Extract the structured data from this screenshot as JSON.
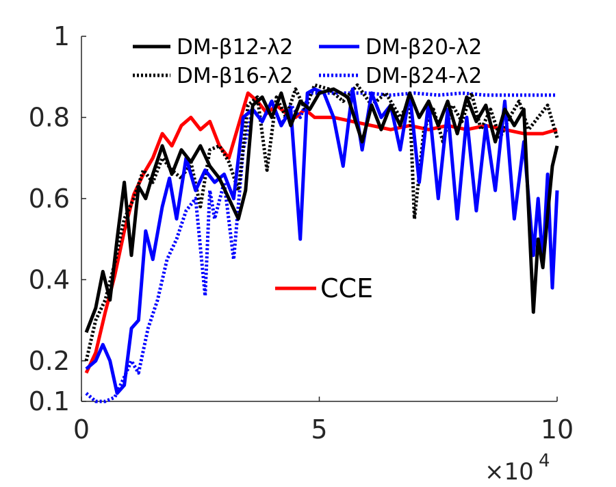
{
  "chart_data": {
    "type": "line",
    "title": "",
    "xlabel": "",
    "ylabel": "",
    "x_multiplier_label": "×10",
    "x_multiplier_exp": "4",
    "xlim": [
      0,
      10
    ],
    "ylim": [
      0.1,
      1
    ],
    "xticks": [
      0,
      5,
      10
    ],
    "xtick_labels": [
      "0",
      "5",
      "10"
    ],
    "yticks": [
      0.1,
      0.2,
      0.4,
      0.6,
      0.8,
      1
    ],
    "ytick_labels": [
      "0.1",
      "0.2",
      "0.4",
      "0.6",
      "0.8",
      "1"
    ],
    "grid": false,
    "legend_position": "top",
    "series": [
      {
        "name": "DM-β12-λ2",
        "color": "#000000",
        "style": "solid",
        "x": [
          0.1,
          0.3,
          0.45,
          0.6,
          0.75,
          0.9,
          1.05,
          1.2,
          1.35,
          1.5,
          1.7,
          1.9,
          2.1,
          2.3,
          2.5,
          2.7,
          2.9,
          3.1,
          3.3,
          3.45,
          3.6,
          3.8,
          4.0,
          4.2,
          4.4,
          4.6,
          4.8,
          5.0,
          5.3,
          5.6,
          5.9,
          6.1,
          6.3,
          6.5,
          6.7,
          6.9,
          7.1,
          7.3,
          7.5,
          7.7,
          7.9,
          8.1,
          8.3,
          8.5,
          8.7,
          8.9,
          9.1,
          9.3,
          9.5,
          9.6,
          9.7,
          9.8,
          9.9,
          10.0
        ],
        "values": [
          0.27,
          0.33,
          0.42,
          0.35,
          0.5,
          0.64,
          0.46,
          0.63,
          0.6,
          0.66,
          0.73,
          0.66,
          0.72,
          0.69,
          0.73,
          0.68,
          0.65,
          0.6,
          0.55,
          0.62,
          0.83,
          0.85,
          0.8,
          0.86,
          0.78,
          0.84,
          0.82,
          0.86,
          0.87,
          0.85,
          0.74,
          0.83,
          0.77,
          0.83,
          0.78,
          0.86,
          0.8,
          0.84,
          0.78,
          0.84,
          0.76,
          0.85,
          0.79,
          0.83,
          0.74,
          0.82,
          0.78,
          0.82,
          0.32,
          0.5,
          0.43,
          0.56,
          0.68,
          0.73
        ]
      },
      {
        "name": "DM-β16-λ2",
        "color": "#000000",
        "style": "dotted",
        "x": [
          0.1,
          0.3,
          0.5,
          0.7,
          0.9,
          1.1,
          1.3,
          1.5,
          1.7,
          1.9,
          2.1,
          2.3,
          2.5,
          2.7,
          2.9,
          3.1,
          3.3,
          3.5,
          3.7,
          3.9,
          4.1,
          4.3,
          4.5,
          4.7,
          4.9,
          5.2,
          5.5,
          5.8,
          6.1,
          6.4,
          6.7,
          6.9,
          7.0,
          7.2,
          7.4,
          7.6,
          7.8,
          8.0,
          8.2,
          8.4,
          8.6,
          8.8,
          9.0,
          9.2,
          9.4,
          9.6,
          9.8,
          10.0
        ],
        "values": [
          0.2,
          0.3,
          0.35,
          0.44,
          0.55,
          0.6,
          0.67,
          0.64,
          0.7,
          0.67,
          0.65,
          0.69,
          0.58,
          0.72,
          0.73,
          0.69,
          0.62,
          0.83,
          0.85,
          0.67,
          0.85,
          0.8,
          0.87,
          0.82,
          0.88,
          0.87,
          0.84,
          0.88,
          0.83,
          0.86,
          0.8,
          0.84,
          0.55,
          0.77,
          0.82,
          0.74,
          0.83,
          0.79,
          0.86,
          0.77,
          0.82,
          0.75,
          0.8,
          0.84,
          0.77,
          0.8,
          0.83,
          0.75
        ]
      },
      {
        "name": "DM-β20-λ2",
        "color": "#0000ff",
        "style": "solid",
        "x": [
          0.1,
          0.3,
          0.45,
          0.6,
          0.75,
          0.9,
          1.05,
          1.2,
          1.35,
          1.5,
          1.7,
          1.85,
          2.0,
          2.2,
          2.4,
          2.6,
          2.8,
          3.0,
          3.2,
          3.4,
          3.6,
          3.8,
          4.0,
          4.2,
          4.4,
          4.6,
          4.75,
          4.9,
          5.1,
          5.3,
          5.5,
          5.7,
          5.9,
          6.1,
          6.3,
          6.5,
          6.7,
          6.9,
          7.1,
          7.3,
          7.5,
          7.7,
          7.9,
          8.1,
          8.3,
          8.5,
          8.7,
          8.9,
          9.1,
          9.3,
          9.5,
          9.6,
          9.7,
          9.8,
          9.9,
          10.0
        ],
        "values": [
          0.18,
          0.2,
          0.24,
          0.2,
          0.12,
          0.14,
          0.28,
          0.3,
          0.52,
          0.45,
          0.58,
          0.65,
          0.55,
          0.7,
          0.62,
          0.67,
          0.64,
          0.66,
          0.6,
          0.8,
          0.82,
          0.79,
          0.84,
          0.78,
          0.82,
          0.5,
          0.86,
          0.87,
          0.86,
          0.8,
          0.68,
          0.87,
          0.72,
          0.86,
          0.8,
          0.83,
          0.72,
          0.86,
          0.64,
          0.84,
          0.6,
          0.82,
          0.55,
          0.8,
          0.57,
          0.78,
          0.62,
          0.84,
          0.55,
          0.74,
          0.46,
          0.6,
          0.44,
          0.66,
          0.38,
          0.62
        ]
      },
      {
        "name": "DM-β24-λ2",
        "color": "#0000ff",
        "style": "dotted",
        "x": [
          0.1,
          0.3,
          0.5,
          0.7,
          0.9,
          1.05,
          1.2,
          1.4,
          1.6,
          1.8,
          2.0,
          2.2,
          2.4,
          2.6,
          2.7,
          2.8,
          3.0,
          3.2,
          3.4,
          3.6,
          3.8,
          4.0,
          4.2,
          4.4,
          4.6,
          4.8,
          5.0,
          5.5,
          6.0,
          6.5,
          7.0,
          7.5,
          8.0,
          8.5,
          9.0,
          9.5,
          10.0
        ],
        "values": [
          0.12,
          0.1,
          0.1,
          0.11,
          0.16,
          0.2,
          0.17,
          0.28,
          0.35,
          0.45,
          0.5,
          0.57,
          0.6,
          0.36,
          0.62,
          0.55,
          0.64,
          0.45,
          0.72,
          0.82,
          0.79,
          0.84,
          0.78,
          0.83,
          0.8,
          0.86,
          0.86,
          0.86,
          0.86,
          0.855,
          0.86,
          0.855,
          0.86,
          0.855,
          0.855,
          0.855,
          0.855
        ]
      },
      {
        "name": "CCE",
        "color": "#ff0000",
        "style": "solid",
        "x": [
          0.1,
          0.3,
          0.5,
          0.7,
          0.9,
          1.1,
          1.3,
          1.5,
          1.7,
          1.9,
          2.1,
          2.3,
          2.5,
          2.7,
          2.9,
          3.1,
          3.3,
          3.5,
          3.7,
          3.9,
          4.1,
          4.3,
          4.5,
          4.7,
          4.9,
          5.3,
          5.7,
          6.1,
          6.5,
          6.9,
          7.3,
          7.7,
          8.1,
          8.5,
          8.9,
          9.3,
          9.7,
          10.0
        ],
        "values": [
          0.17,
          0.22,
          0.32,
          0.41,
          0.52,
          0.61,
          0.66,
          0.7,
          0.76,
          0.73,
          0.78,
          0.8,
          0.77,
          0.79,
          0.73,
          0.7,
          0.78,
          0.86,
          0.84,
          0.81,
          0.83,
          0.81,
          0.8,
          0.82,
          0.8,
          0.8,
          0.79,
          0.78,
          0.77,
          0.78,
          0.77,
          0.78,
          0.77,
          0.78,
          0.77,
          0.76,
          0.76,
          0.77
        ]
      }
    ],
    "legend_entries": [
      "DM-β12-λ2",
      "DM-β20-λ2",
      "DM-β16-λ2",
      "DM-β24-λ2"
    ],
    "annotation": "CCE"
  }
}
